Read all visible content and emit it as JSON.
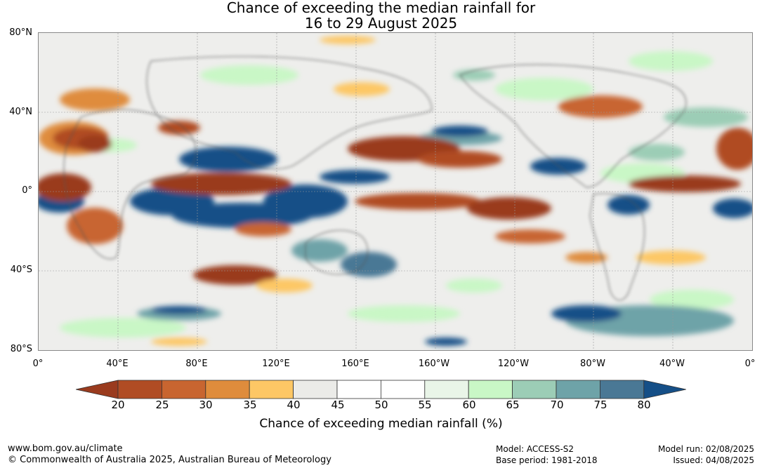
{
  "title": {
    "line1": "Chance of exceeding the median rainfall for",
    "line2": "16 to 29 August 2025"
  },
  "axes": {
    "lat_labels": [
      "80°N",
      "40°N",
      "0°",
      "40°S",
      "80°S"
    ],
    "lon_labels": [
      "0°",
      "40°E",
      "80°E",
      "120°E",
      "160°E",
      "160°W",
      "120°W",
      "80°W",
      "40°W",
      "0°"
    ]
  },
  "colorbar": {
    "ticks": [
      "20",
      "25",
      "30",
      "35",
      "40",
      "45",
      "50",
      "55",
      "60",
      "65",
      "70",
      "75",
      "80"
    ],
    "colors": [
      "#9a3b1e",
      "#b04c24",
      "#c86530",
      "#df8c3c",
      "#fdc765",
      "#ebebe8",
      "#ffffff",
      "#ffffff",
      "#e9f5e8",
      "#c9f7c6",
      "#9ccdb6",
      "#6ea3a8",
      "#4a7895",
      "#154f87"
    ],
    "label": "Chance of exceeding median rainfall (%)"
  },
  "footer": {
    "url": "www.bom.gov.au/climate",
    "copyright": "© Commonwealth of Australia 2025, Australian Bureau of Meteorology",
    "model": "Model: ACCESS-S2",
    "base_period": "Base period: 1981-2018",
    "model_run": "Model run: 02/08/2025",
    "issued": "Issued: 04/08/2025"
  }
}
